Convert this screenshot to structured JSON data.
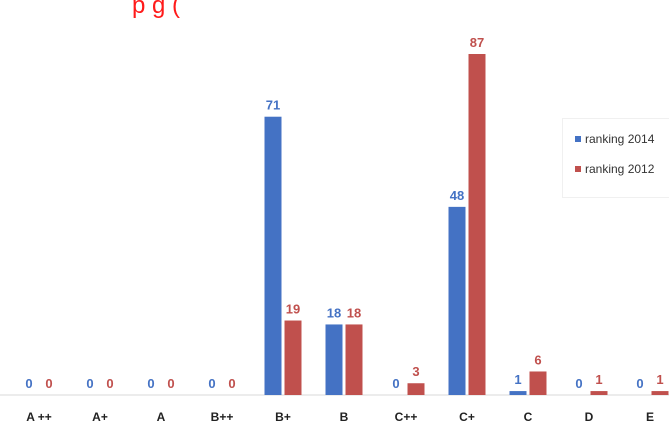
{
  "chart_data": {
    "type": "bar",
    "title": "",
    "title_visible": "p       g (",
    "categories": [
      "A ++",
      "A+",
      "A",
      "B++",
      "B+",
      "B",
      "C++",
      "C+",
      "C",
      "D",
      "E"
    ],
    "series": [
      {
        "name": "ranking 2014",
        "color": "#4472c4",
        "values": [
          0,
          0,
          0,
          0,
          71,
          18,
          0,
          48,
          1,
          0,
          0
        ]
      },
      {
        "name": "ranking 2012",
        "color": "#c0504d",
        "values": [
          0,
          0,
          0,
          0,
          19,
          18,
          3,
          87,
          6,
          1,
          1
        ]
      }
    ],
    "ylim": [
      0,
      87
    ],
    "grid": false,
    "legend": "right",
    "xlabel": "",
    "ylabel": ""
  }
}
